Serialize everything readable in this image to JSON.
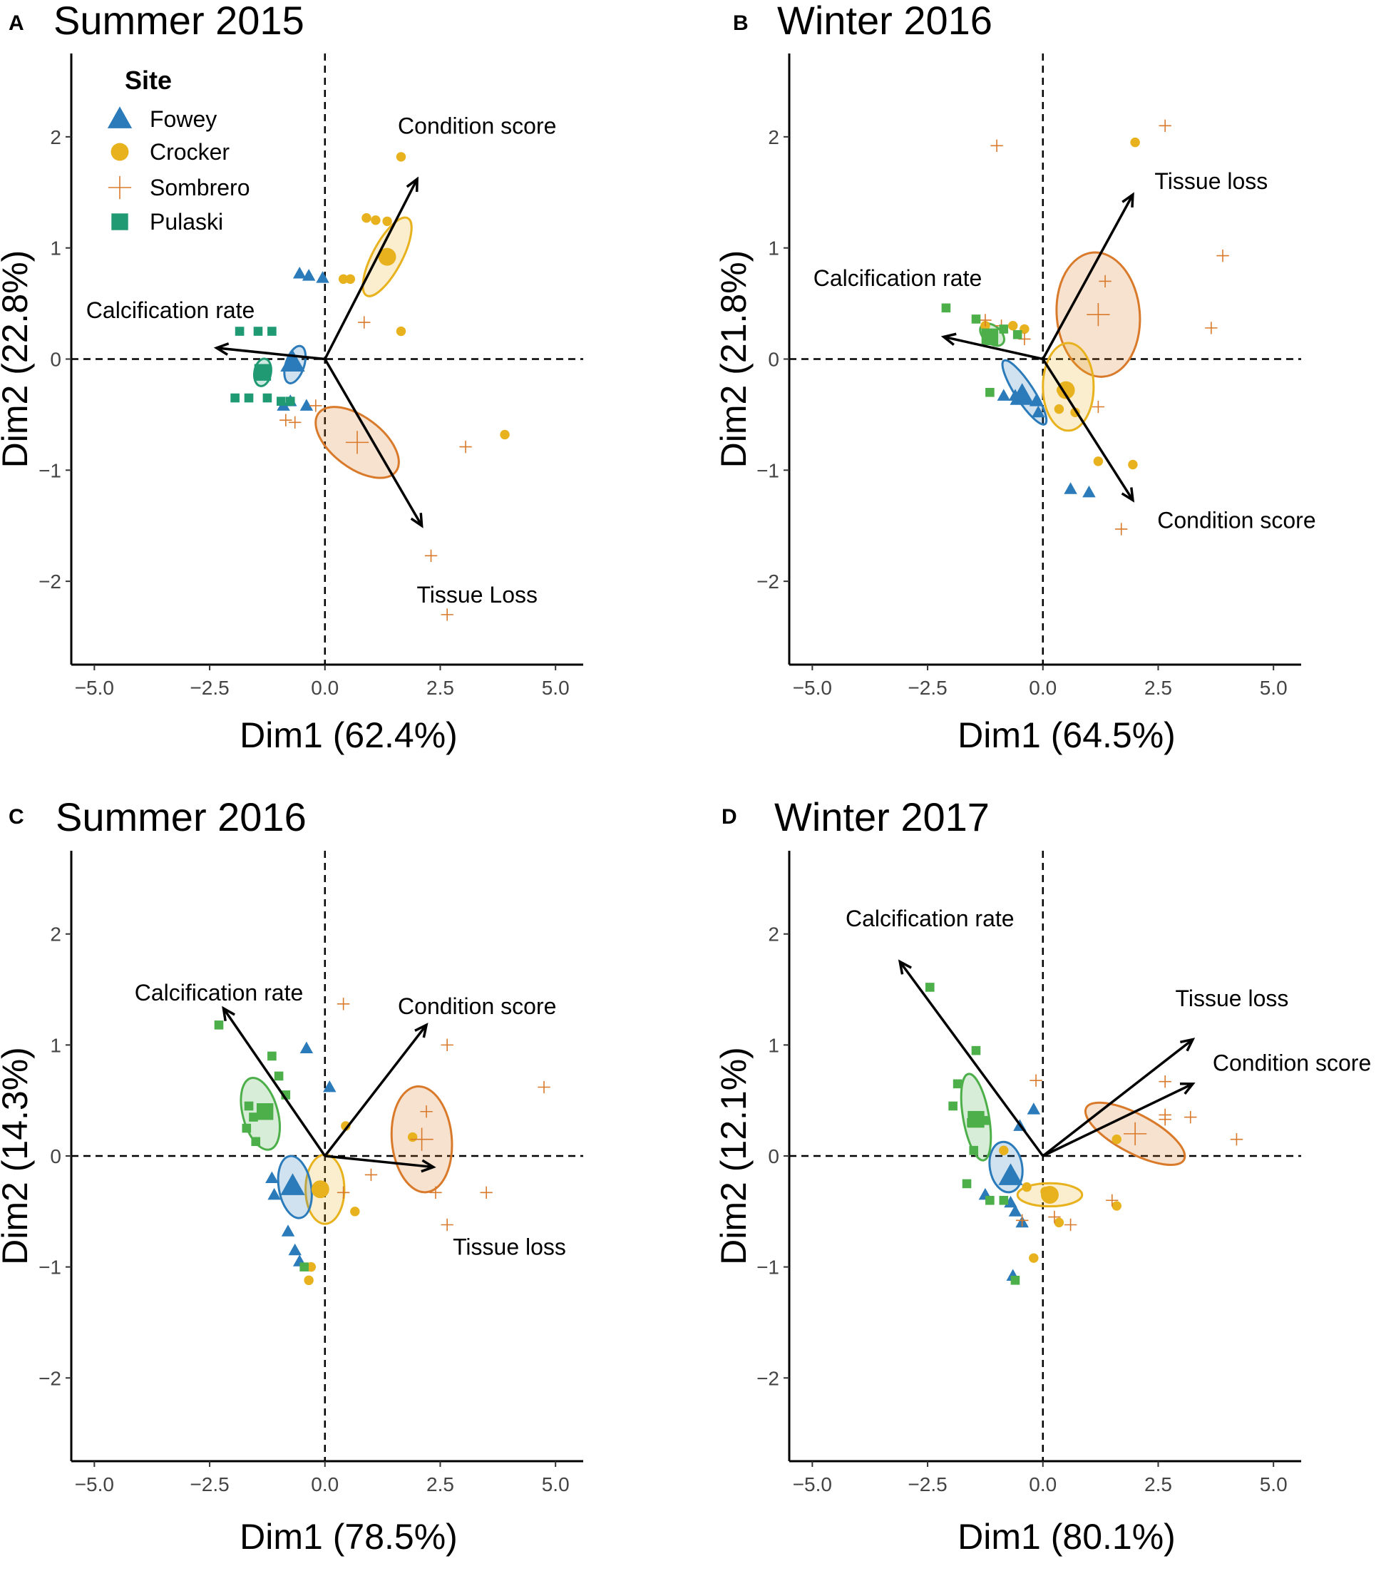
{
  "legend": {
    "title": "Site",
    "items": [
      {
        "label": "Fowey",
        "shape": "triangle",
        "color": "#2b7bba"
      },
      {
        "label": "Crocker",
        "shape": "circle",
        "color": "#e8b21e"
      },
      {
        "label": "Sombrero",
        "shape": "plus",
        "color": "#d97a2b"
      },
      {
        "label": "Pulaski",
        "shape": "square",
        "color": "#1f9a73"
      }
    ]
  },
  "colors": {
    "fowey": "#2b7bba",
    "crocker": "#e8b21e",
    "sombrero": "#d97a2b",
    "pulaski": "#1f9a73",
    "pulaski_alt": "#4daf4a"
  },
  "chart_data": [
    {
      "type": "scatter",
      "panel": "A",
      "title": "Summer 2015",
      "xlabel": "Dim1 (62.4%)",
      "ylabel": "Dim2 (22.8%)",
      "xlim": [
        -5.5,
        5.6
      ],
      "ylim": [
        -2.75,
        2.75
      ],
      "xticks": [
        "−5.0",
        "−2.5",
        "0.0",
        "2.5",
        "5.0"
      ],
      "yticks": [
        "2",
        "1",
        "0",
        "−1",
        "−2"
      ],
      "pulaski_color": "#1f9a73",
      "arrows": [
        {
          "label": "Condition score",
          "x": 2.0,
          "y": 1.62,
          "label_x": 3.3,
          "label_y": 2.1
        },
        {
          "label": "Calcification rate",
          "x": -2.35,
          "y": 0.1,
          "label_x": -3.35,
          "label_y": 0.44
        },
        {
          "label": "Tissue Loss",
          "x": 2.1,
          "y": -1.5,
          "label_x": 3.3,
          "label_y": -2.12
        }
      ],
      "ellipses": [
        {
          "site": "crocker",
          "cx": 1.35,
          "cy": 0.92,
          "rx": 0.95,
          "ry": 0.32,
          "angle": 62
        },
        {
          "site": "sombrero",
          "cx": 0.7,
          "cy": -0.75,
          "rx": 1.05,
          "ry": 0.55,
          "angle": -37
        },
        {
          "site": "fowey",
          "cx": -0.65,
          "cy": -0.05,
          "rx": 0.42,
          "ry": 0.2,
          "angle": 72
        },
        {
          "site": "pulaski",
          "cx": -1.35,
          "cy": -0.12,
          "rx": 0.3,
          "ry": 0.18,
          "angle": 80
        }
      ],
      "points": {
        "fowey": [
          [
            -0.55,
            0.77
          ],
          [
            -0.35,
            0.75
          ],
          [
            -0.05,
            0.73
          ],
          [
            -0.75,
            -0.38
          ],
          [
            -0.9,
            -0.42
          ],
          [
            -0.4,
            -0.42
          ]
        ],
        "crocker": [
          [
            1.65,
            1.82
          ],
          [
            0.9,
            1.27
          ],
          [
            1.1,
            1.25
          ],
          [
            1.35,
            1.24
          ],
          [
            0.4,
            0.72
          ],
          [
            0.55,
            0.72
          ],
          [
            1.65,
            0.25
          ],
          [
            3.9,
            -0.68
          ]
        ],
        "sombrero": [
          [
            0.85,
            0.33
          ],
          [
            -0.2,
            -0.42
          ],
          [
            -0.85,
            -0.55
          ],
          [
            -0.65,
            -0.57
          ],
          [
            3.05,
            -0.79
          ],
          [
            2.3,
            -1.77
          ],
          [
            2.65,
            -2.3
          ]
        ],
        "pulaski": [
          [
            -1.85,
            0.25
          ],
          [
            -1.45,
            0.25
          ],
          [
            -1.15,
            0.25
          ],
          [
            -1.95,
            -0.35
          ],
          [
            -1.65,
            -0.35
          ],
          [
            -1.25,
            -0.35
          ],
          [
            -0.95,
            -0.38
          ],
          [
            -0.75,
            -0.38
          ]
        ]
      },
      "centroids": {
        "fowey": [
          -0.7,
          -0.03
        ],
        "crocker": [
          1.35,
          0.92
        ],
        "sombrero": [
          0.7,
          -0.75
        ],
        "pulaski": [
          -1.35,
          -0.12
        ]
      }
    },
    {
      "type": "scatter",
      "panel": "B",
      "title": "Winter 2016",
      "xlabel": "Dim1 (64.5%)",
      "ylabel": "Dim2 (21.8%)",
      "xlim": [
        -5.5,
        5.6
      ],
      "ylim": [
        -2.75,
        2.75
      ],
      "xticks": [
        "−5.0",
        "−2.5",
        "0.0",
        "2.5",
        "5.0"
      ],
      "yticks": [
        "2",
        "1",
        "0",
        "−1",
        "−2"
      ],
      "pulaski_color": "#4daf4a",
      "arrows": [
        {
          "label": "Tissue loss",
          "x": 1.95,
          "y": 1.48,
          "label_x": 3.65,
          "label_y": 1.6
        },
        {
          "label": "Calcification rate",
          "x": -2.15,
          "y": 0.2,
          "label_x": -3.15,
          "label_y": 0.73
        },
        {
          "label": "Condition score",
          "x": 1.95,
          "y": -1.27,
          "label_x": 4.2,
          "label_y": -1.45
        }
      ],
      "ellipses": [
        {
          "site": "sombrero",
          "cx": 1.2,
          "cy": 0.4,
          "rx": 1.35,
          "ry": 0.9,
          "angle": 95
        },
        {
          "site": "crocker",
          "cx": 0.55,
          "cy": -0.25,
          "rx": 0.95,
          "ry": 0.55,
          "angle": 90
        },
        {
          "site": "fowey",
          "cx": -0.4,
          "cy": -0.3,
          "rx": 0.82,
          "ry": 0.2,
          "angle": -57
        },
        {
          "site": "pulaski",
          "cx": -1.1,
          "cy": 0.22,
          "rx": 0.3,
          "ry": 0.19,
          "angle": -40
        }
      ],
      "points": {
        "fowey": [
          [
            -0.85,
            -0.33
          ],
          [
            -0.6,
            -0.33
          ],
          [
            -0.15,
            -0.38
          ],
          [
            0.6,
            -1.17
          ],
          [
            1.0,
            -1.2
          ],
          [
            -0.1,
            -0.48
          ]
        ],
        "crocker": [
          [
            2.0,
            1.95
          ],
          [
            -1.25,
            0.3
          ],
          [
            -0.65,
            0.3
          ],
          [
            -0.4,
            0.27
          ],
          [
            0.55,
            -0.28
          ],
          [
            0.4,
            -0.28
          ],
          [
            0.7,
            -0.48
          ],
          [
            0.35,
            -0.45
          ],
          [
            1.2,
            -0.92
          ],
          [
            1.95,
            -0.95
          ]
        ],
        "sombrero": [
          [
            2.65,
            2.1
          ],
          [
            -1.0,
            1.92
          ],
          [
            3.9,
            0.93
          ],
          [
            1.35,
            0.7
          ],
          [
            3.65,
            0.28
          ],
          [
            -1.25,
            0.35
          ],
          [
            -0.9,
            0.3
          ],
          [
            -0.4,
            0.18
          ],
          [
            1.2,
            -0.43
          ],
          [
            1.7,
            -1.53
          ]
        ],
        "pulaski": [
          [
            -2.1,
            0.46
          ],
          [
            -1.45,
            0.36
          ],
          [
            -0.85,
            0.27
          ],
          [
            -0.55,
            0.22
          ],
          [
            -1.15,
            -0.3
          ]
        ]
      },
      "centroids": {
        "fowey": [
          -0.45,
          -0.33
        ],
        "crocker": [
          0.5,
          -0.28
        ],
        "sombrero": [
          1.2,
          0.4
        ],
        "pulaski": [
          -1.15,
          0.2
        ]
      }
    },
    {
      "type": "scatter",
      "panel": "C",
      "title": "Summer 2016",
      "xlabel": "Dim1 (78.5%)",
      "ylabel": "Dim2 (14.3%)",
      "xlim": [
        -5.5,
        5.6
      ],
      "ylim": [
        -2.75,
        2.75
      ],
      "xticks": [
        "−5.0",
        "−2.5",
        "0.0",
        "2.5",
        "5.0"
      ],
      "yticks": [
        "2",
        "1",
        "0",
        "−1",
        "−2"
      ],
      "pulaski_color": "#4daf4a",
      "arrows": [
        {
          "label": "Calcification rate",
          "x": -2.2,
          "y": 1.33,
          "label_x": -2.3,
          "label_y": 1.47
        },
        {
          "label": "Condition score",
          "x": 2.2,
          "y": 1.18,
          "label_x": 3.3,
          "label_y": 1.35
        },
        {
          "label": "Tissue loss",
          "x": 2.35,
          "y": -0.1,
          "label_x": 4.0,
          "label_y": -0.82
        }
      ],
      "ellipses": [
        {
          "site": "sombrero",
          "cx": 2.1,
          "cy": 0.15,
          "rx": 1.15,
          "ry": 0.65,
          "angle": 95
        },
        {
          "site": "crocker",
          "cx": 0.0,
          "cy": -0.3,
          "rx": 0.75,
          "ry": 0.42,
          "angle": 90
        },
        {
          "site": "fowey",
          "cx": -0.65,
          "cy": -0.28,
          "rx": 0.68,
          "ry": 0.35,
          "angle": 100
        },
        {
          "site": "pulaski",
          "cx": -1.4,
          "cy": 0.38,
          "rx": 0.8,
          "ry": 0.38,
          "angle": 105
        }
      ],
      "points": {
        "fowey": [
          [
            -0.4,
            0.97
          ],
          [
            0.1,
            0.62
          ],
          [
            -1.15,
            -0.2
          ],
          [
            -1.1,
            -0.35
          ],
          [
            -0.8,
            -0.68
          ],
          [
            -0.65,
            -0.85
          ],
          [
            -0.55,
            -0.95
          ]
        ],
        "crocker": [
          [
            0.45,
            0.27
          ],
          [
            1.9,
            0.17
          ],
          [
            -0.1,
            -0.3
          ],
          [
            0.65,
            -0.5
          ],
          [
            -0.3,
            -1.0
          ],
          [
            -0.35,
            -1.12
          ]
        ],
        "sombrero": [
          [
            0.4,
            1.37
          ],
          [
            2.65,
            1.0
          ],
          [
            4.75,
            0.62
          ],
          [
            2.2,
            0.4
          ],
          [
            1.0,
            -0.17
          ],
          [
            0.4,
            -0.33
          ],
          [
            2.4,
            -0.33
          ],
          [
            3.5,
            -0.33
          ],
          [
            2.65,
            -0.62
          ]
        ],
        "pulaski": [
          [
            -2.3,
            1.18
          ],
          [
            -1.15,
            0.9
          ],
          [
            -1.0,
            0.72
          ],
          [
            -0.85,
            0.55
          ],
          [
            -1.65,
            0.45
          ],
          [
            -1.55,
            0.35
          ],
          [
            -1.7,
            0.25
          ],
          [
            -1.5,
            0.13
          ],
          [
            -0.45,
            -1.0
          ]
        ]
      },
      "centroids": {
        "fowey": [
          -0.7,
          -0.27
        ],
        "crocker": [
          -0.1,
          -0.3
        ],
        "sombrero": [
          2.1,
          0.15
        ],
        "pulaski": [
          -1.3,
          0.4
        ]
      }
    },
    {
      "type": "scatter",
      "panel": "D",
      "title": "Winter 2017",
      "xlabel": "Dim1 (80.1%)",
      "ylabel": "Dim2 (12.1%)",
      "xlim": [
        -5.5,
        5.6
      ],
      "ylim": [
        -2.75,
        2.75
      ],
      "xticks": [
        "−5.0",
        "−2.5",
        "0.0",
        "2.5",
        "5.0"
      ],
      "yticks": [
        "2",
        "1",
        "0",
        "−1",
        "−2"
      ],
      "pulaski_color": "#4daf4a",
      "arrows": [
        {
          "label": "Calcification rate",
          "x": -3.1,
          "y": 1.75,
          "label_x": -2.45,
          "label_y": 2.14
        },
        {
          "label": "Tissue loss",
          "x": 3.25,
          "y": 1.05,
          "label_x": 4.1,
          "label_y": 1.42
        },
        {
          "label": "Condition score",
          "x": 3.25,
          "y": 0.65,
          "label_x": 5.4,
          "label_y": 0.84
        }
      ],
      "ellipses": [
        {
          "site": "sombrero",
          "cx": 2.0,
          "cy": 0.2,
          "rx": 1.2,
          "ry": 0.42,
          "angle": -28
        },
        {
          "site": "crocker",
          "cx": 0.15,
          "cy": -0.35,
          "rx": 0.7,
          "ry": 0.25,
          "angle": 0
        },
        {
          "site": "fowey",
          "cx": -0.8,
          "cy": -0.1,
          "rx": 0.55,
          "ry": 0.35,
          "angle": 100
        },
        {
          "site": "pulaski",
          "cx": -1.45,
          "cy": 0.35,
          "rx": 0.95,
          "ry": 0.28,
          "angle": 100
        }
      ],
      "points": {
        "fowey": [
          [
            -0.2,
            0.42
          ],
          [
            -0.5,
            0.27
          ],
          [
            -1.25,
            -0.35
          ],
          [
            -0.7,
            -0.42
          ],
          [
            -0.6,
            -0.5
          ],
          [
            -0.45,
            -0.6
          ],
          [
            -0.65,
            -1.08
          ]
        ],
        "crocker": [
          [
            -0.85,
            0.05
          ],
          [
            -0.35,
            -0.28
          ],
          [
            0.05,
            -0.32
          ],
          [
            0.35,
            -0.6
          ],
          [
            -0.2,
            -0.92
          ],
          [
            1.6,
            0.15
          ],
          [
            1.6,
            -0.45
          ]
        ],
        "sombrero": [
          [
            -0.15,
            0.68
          ],
          [
            2.65,
            0.67
          ],
          [
            2.65,
            0.37
          ],
          [
            3.2,
            0.35
          ],
          [
            4.2,
            0.15
          ],
          [
            2.65,
            0.33
          ],
          [
            1.5,
            -0.4
          ],
          [
            0.25,
            -0.55
          ],
          [
            0.6,
            -0.62
          ],
          [
            -0.45,
            -0.58
          ]
        ],
        "pulaski": [
          [
            -2.45,
            1.52
          ],
          [
            -1.45,
            0.95
          ],
          [
            -1.85,
            0.65
          ],
          [
            -1.95,
            0.45
          ],
          [
            -1.25,
            0.32
          ],
          [
            -1.55,
            0.3
          ],
          [
            -1.5,
            0.05
          ],
          [
            -1.15,
            -0.4
          ],
          [
            -0.85,
            -0.4
          ],
          [
            -1.65,
            -0.25
          ],
          [
            -0.6,
            -1.12
          ]
        ]
      },
      "centroids": {
        "fowey": [
          -0.7,
          -0.18
        ],
        "crocker": [
          0.15,
          -0.35
        ],
        "sombrero": [
          2.0,
          0.2
        ],
        "pulaski": [
          -1.45,
          0.33
        ]
      }
    }
  ]
}
